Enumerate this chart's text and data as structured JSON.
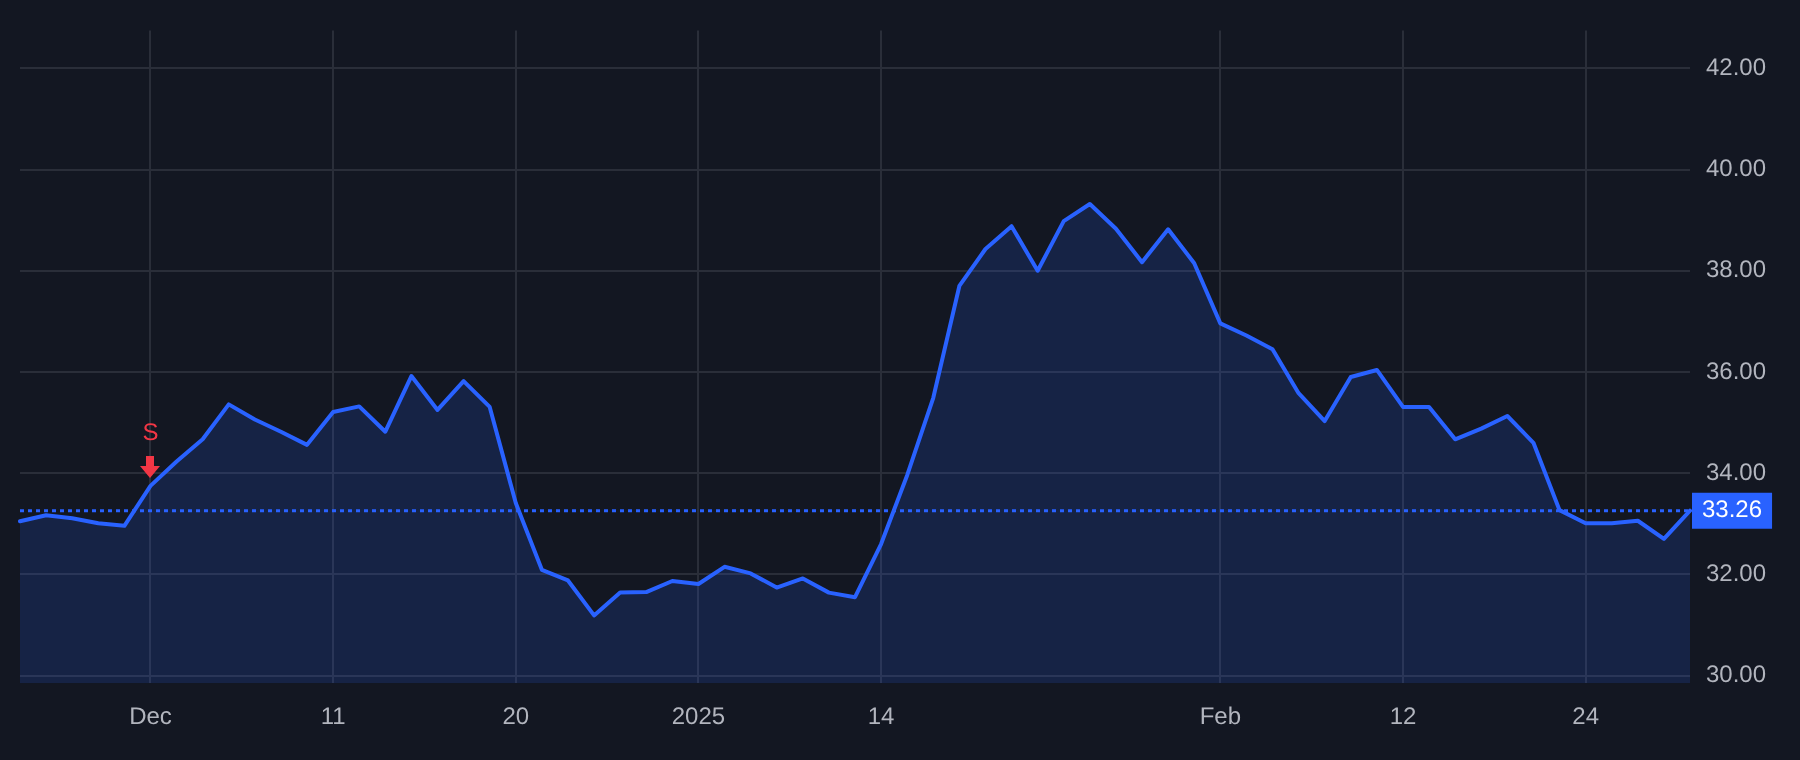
{
  "chart_data": {
    "type": "area",
    "categories": [
      null,
      null,
      null,
      null,
      null,
      "Dec",
      null,
      null,
      null,
      null,
      null,
      null,
      "11",
      null,
      null,
      null,
      null,
      null,
      null,
      "20",
      null,
      null,
      null,
      null,
      null,
      null,
      "2025",
      null,
      null,
      null,
      null,
      null,
      null,
      "14",
      null,
      null,
      null,
      null,
      null,
      null,
      null,
      null,
      null,
      null,
      null,
      null,
      "Feb",
      null,
      null,
      null,
      null,
      null,
      null,
      "12",
      null,
      null,
      null,
      null,
      null,
      null,
      "24",
      null,
      null,
      null,
      null
    ],
    "series": [
      {
        "color": "#2962ff",
        "values": [
          33.05,
          33.17,
          33.11,
          33.01,
          32.96,
          33.75,
          34.23,
          34.67,
          35.36,
          35.06,
          34.82,
          34.56,
          35.21,
          35.32,
          34.82,
          35.92,
          35.25,
          35.82,
          35.31,
          33.41,
          32.09,
          31.88,
          31.19,
          31.64,
          31.65,
          31.87,
          31.81,
          32.15,
          32.02,
          31.74,
          31.92,
          31.64,
          31.55,
          32.6,
          33.96,
          35.49,
          37.7,
          38.43,
          38.88,
          38.0,
          38.98,
          39.32,
          38.83,
          38.17,
          38.82,
          38.15,
          36.96,
          36.72,
          36.45,
          35.58,
          35.03,
          35.9,
          36.04,
          35.31,
          35.31,
          34.67,
          34.88,
          35.13,
          34.6,
          33.27,
          33.01,
          33.01,
          33.06,
          32.7,
          33.26
        ]
      }
    ],
    "ylim": [
      29.85,
      42.75
    ],
    "yticks": [
      {
        "value": 30,
        "label": "30.00"
      },
      {
        "value": 32,
        "label": "32.00"
      },
      {
        "value": 34,
        "label": "34.00"
      },
      {
        "value": 36,
        "label": "36.00"
      },
      {
        "value": 38,
        "label": "38.00"
      },
      {
        "value": 40,
        "label": "40.00"
      },
      {
        "value": 42,
        "label": "42.00"
      }
    ],
    "grid": true,
    "legend": false,
    "ref_lines": [
      {
        "axis": "y",
        "value": 33.26,
        "label": "33.26",
        "color": "#2962ff",
        "line_style": "dotted"
      }
    ],
    "annotations": [
      {
        "text": "S",
        "x": "Dec",
        "y": 33.75
      }
    ]
  }
}
